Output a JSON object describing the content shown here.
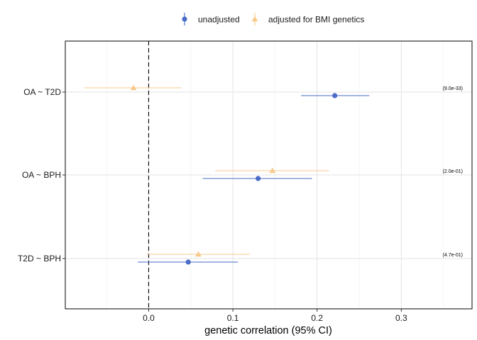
{
  "chart_data": {
    "type": "forest",
    "xlabel": "genetic correlation (95% CI)",
    "xlim": [
      -0.099,
      0.384
    ],
    "x_ticks": [
      0.0,
      0.1,
      0.2,
      0.3
    ],
    "x_tick_labels": [
      "0.0",
      "0.1",
      "0.2",
      "0.3"
    ],
    "categories": [
      "OA ~ T2D",
      "OA ~ BPH",
      "T2D ~ BPH"
    ],
    "reference_line": 0,
    "grid": true,
    "legend_position": "top",
    "series": [
      {
        "name": "unadjusted",
        "color": "#4a6bc8",
        "shape": "circle",
        "points": [
          {
            "category": "OA ~ T2D",
            "estimate": 0.221,
            "lower": 0.181,
            "upper": 0.262
          },
          {
            "category": "OA ~ BPH",
            "estimate": 0.13,
            "lower": 0.064,
            "upper": 0.194
          },
          {
            "category": "T2D ~ BPH",
            "estimate": 0.047,
            "lower": -0.013,
            "upper": 0.106
          }
        ]
      },
      {
        "name": "adjusted for BMI genetics",
        "color": "#f7c98b",
        "shape": "triangle",
        "points": [
          {
            "category": "OA ~ T2D",
            "estimate": -0.018,
            "lower": -0.076,
            "upper": 0.039
          },
          {
            "category": "OA ~ BPH",
            "estimate": 0.147,
            "lower": 0.079,
            "upper": 0.214
          },
          {
            "category": "T2D ~ BPH",
            "estimate": 0.059,
            "lower": -0.002,
            "upper": 0.12
          }
        ]
      }
    ],
    "annotations": [
      {
        "category": "OA ~ T2D",
        "text": "(9.0e-33)"
      },
      {
        "category": "OA ~ BPH",
        "text": "(2.0e-01)"
      },
      {
        "category": "T2D ~ BPH",
        "text": "(4.7e-01)"
      }
    ]
  }
}
